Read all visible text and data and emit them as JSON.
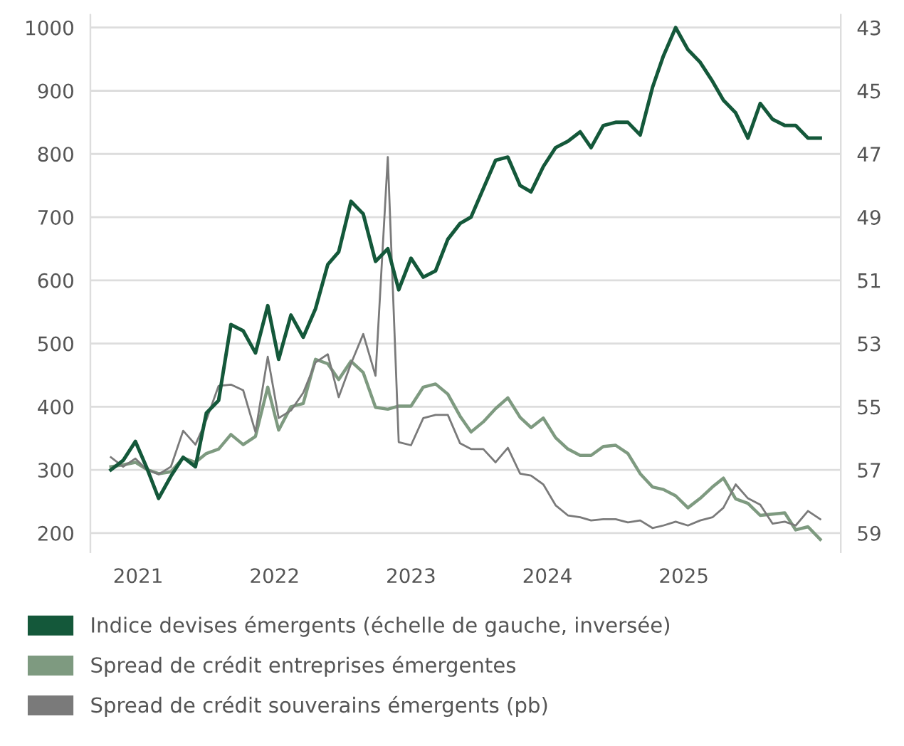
{
  "chart_data": {
    "type": "line",
    "x": [
      2020.8,
      2020.89,
      2020.98,
      2021.06,
      2021.15,
      2021.24,
      2021.33,
      2021.42,
      2021.5,
      2021.59,
      2021.68,
      2021.77,
      2021.86,
      2021.95,
      2022.03,
      2022.12,
      2022.21,
      2022.3,
      2022.39,
      2022.47,
      2022.56,
      2022.65,
      2022.74,
      2022.83,
      2022.91,
      2023.0,
      2023.09,
      2023.18,
      2023.27,
      2023.36,
      2023.44,
      2023.53,
      2023.62,
      2023.71,
      2023.8,
      2023.88,
      2023.97,
      2024.06,
      2024.15,
      2024.24,
      2024.32,
      2024.41,
      2024.5,
      2024.59,
      2024.68,
      2024.77,
      2024.85,
      2024.94,
      2025.03,
      2025.12,
      2025.21,
      2025.29,
      2025.38,
      2025.47,
      2025.56,
      2025.65,
      2025.74,
      2025.82,
      2025.91,
      2026.0
    ],
    "series": [
      {
        "name": "Indice devises émergents (échelle de gauche, inversée)",
        "color": "#14583a",
        "axis": "y2",
        "values": [
          57.0,
          56.7,
          56.1,
          56.9,
          57.9,
          57.2,
          56.6,
          56.9,
          55.2,
          54.8,
          52.4,
          52.6,
          53.3,
          51.8,
          53.5,
          52.1,
          52.8,
          51.9,
          50.5,
          50.1,
          48.5,
          48.9,
          50.4,
          50.0,
          51.3,
          50.3,
          50.9,
          50.7,
          49.7,
          49.2,
          49.0,
          48.1,
          47.2,
          47.1,
          48.0,
          48.2,
          47.4,
          46.8,
          46.6,
          46.3,
          46.8,
          46.1,
          46.0,
          46.0,
          46.4,
          44.9,
          43.9,
          43.0,
          43.7,
          44.1,
          44.7,
          45.3,
          45.7,
          46.5,
          45.4,
          45.9,
          46.1,
          46.1,
          46.5,
          46.5
        ]
      },
      {
        "name": "Spread de crédit entreprises émergentes",
        "color": "#7e9a80",
        "values": [
          305,
          308,
          312,
          301,
          294,
          297,
          319,
          312,
          326,
          333,
          356,
          340,
          353,
          431,
          363,
          400,
          405,
          475,
          468,
          443,
          472,
          454,
          399,
          396,
          401,
          401,
          431,
          436,
          420,
          385,
          360,
          376,
          397,
          414,
          383,
          367,
          382,
          351,
          333,
          323,
          323,
          337,
          339,
          326,
          294,
          273,
          269,
          259,
          240,
          255,
          273,
          287,
          254,
          247,
          228,
          230,
          232,
          205,
          210,
          190
        ]
      },
      {
        "name": "Spread de crédit souverains émergents (pb)",
        "color": "#7a7a7a",
        "values": [
          320,
          305,
          318,
          301,
          293,
          305,
          362,
          340,
          379,
          433,
          435,
          426,
          360,
          479,
          382,
          394,
          422,
          470,
          483,
          415,
          468,
          515,
          449,
          795,
          344,
          339,
          382,
          387,
          387,
          342,
          333,
          333,
          312,
          335,
          294,
          291,
          277,
          244,
          228,
          225,
          220,
          222,
          222,
          217,
          220,
          208,
          212,
          218,
          212,
          220,
          225,
          240,
          277,
          255,
          245,
          215,
          218,
          212,
          235,
          222
        ]
      }
    ],
    "xlim": [
      2020.65,
      2026.15
    ],
    "xticks": [
      2021,
      2022,
      2023,
      2024,
      2025
    ],
    "ylim": [
      170,
      1020
    ],
    "yticks": [
      200,
      300,
      400,
      500,
      600,
      700,
      800,
      900,
      1000
    ],
    "y2lim": [
      59.6,
      42.6
    ],
    "y2ticks": [
      43,
      45,
      47,
      49,
      51,
      53,
      55,
      57,
      59
    ],
    "grid": "y",
    "legend": "bottom"
  }
}
